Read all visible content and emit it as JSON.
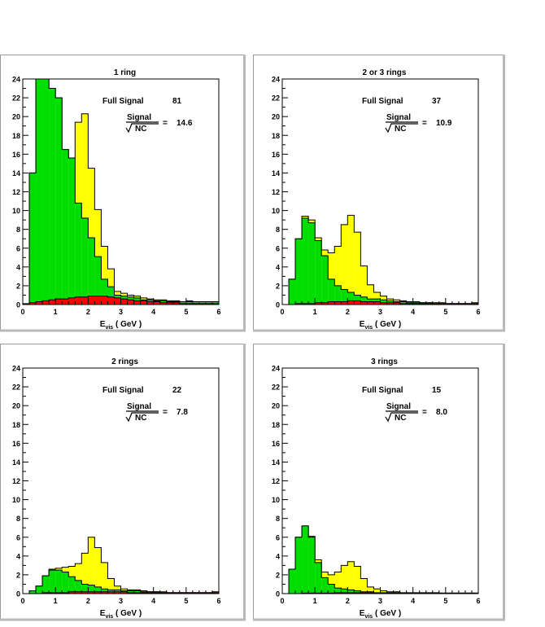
{
  "chart_data": [
    {
      "type": "area",
      "title": "1 ring",
      "xlabel": "E",
      "xlabel_sub": "vis",
      "xlabel_unit": "( GeV )",
      "ylabel": "",
      "xlim": [
        0,
        6
      ],
      "ylim": [
        0,
        24
      ],
      "x_ticks": [
        "0",
        "1",
        "2",
        "3",
        "4",
        "5",
        "6"
      ],
      "y_ticks": [
        "0",
        "2",
        "4",
        "6",
        "8",
        "10",
        "12",
        "14",
        "16",
        "18",
        "20",
        "22",
        "24"
      ],
      "annotations": {
        "full_signal_label": "Full Signal",
        "full_signal_value": "81",
        "signal_label": "Signal",
        "nc_label": "NC",
        "ratio_value": "14.6"
      },
      "bin_edges": [
        0,
        0.2,
        0.4,
        0.6,
        0.8,
        1.0,
        1.2,
        1.4,
        1.6,
        1.8,
        2.0,
        2.2,
        2.4,
        2.6,
        2.8,
        3.0,
        3.2,
        3.4,
        3.6,
        3.8,
        4.0,
        4.2,
        4.4,
        4.6,
        4.8,
        5.0,
        5.2,
        5.4,
        5.6,
        5.8,
        6.0
      ],
      "series": [
        {
          "name": "",
          "color": "#ffff00",
          "values": [
            0,
            14,
            30,
            24,
            23,
            22,
            16.5,
            15.6,
            19.4,
            20.3,
            14.5,
            10.1,
            6.2,
            3.8,
            1.4,
            1.2,
            1.0,
            0.9,
            0.7,
            0.6,
            0.5,
            0.5,
            0.4,
            0.4,
            0.3,
            0.4,
            0.3,
            0.3,
            0.3,
            0.3
          ]
        },
        {
          "name": "",
          "color": "#00dd00",
          "values": [
            0,
            14,
            30,
            24,
            23,
            22,
            16.5,
            15.6,
            10.8,
            9.2,
            7.1,
            5.1,
            2.7,
            1.9,
            1.0,
            0.9,
            0.8,
            0.7,
            0.5,
            0.5,
            0.4,
            0.4,
            0.3,
            0.3,
            0.3,
            0.3,
            0.3,
            0.3,
            0.3,
            0.3
          ]
        },
        {
          "name": "",
          "color": "#ff0000",
          "values": [
            0.1,
            0.2,
            0.3,
            0.4,
            0.5,
            0.6,
            0.6,
            0.7,
            0.8,
            0.8,
            0.9,
            0.9,
            0.9,
            0.8,
            0.7,
            0.6,
            0.5,
            0.4,
            0.4,
            0.3,
            0.3,
            0.2,
            0.2,
            0.2,
            0.1,
            0.1,
            0.1,
            0.1,
            0.1,
            0.1
          ]
        }
      ]
    },
    {
      "type": "area",
      "title": "2 or 3 rings",
      "xlabel": "E",
      "xlabel_sub": "vis",
      "xlabel_unit": "( GeV )",
      "ylabel": "",
      "xlim": [
        0,
        6
      ],
      "ylim": [
        0,
        24
      ],
      "x_ticks": [
        "0",
        "1",
        "2",
        "3",
        "4",
        "5",
        "6"
      ],
      "y_ticks": [
        "0",
        "2",
        "4",
        "6",
        "8",
        "10",
        "12",
        "14",
        "16",
        "18",
        "20",
        "22",
        "24"
      ],
      "annotations": {
        "full_signal_label": "Full Signal",
        "full_signal_value": "37",
        "signal_label": "Signal",
        "nc_label": "NC",
        "ratio_value": "10.9"
      },
      "bin_edges": [
        0,
        0.2,
        0.4,
        0.6,
        0.8,
        1.0,
        1.2,
        1.4,
        1.6,
        1.8,
        2.0,
        2.2,
        2.4,
        2.6,
        2.8,
        3.0,
        3.2,
        3.4,
        3.6,
        3.8,
        4.0,
        4.2,
        4.4,
        4.6,
        4.8,
        5.0,
        5.2,
        5.4,
        5.6,
        5.8,
        6.0
      ],
      "series": [
        {
          "name": "",
          "color": "#ffff00",
          "values": [
            0,
            2.7,
            7.0,
            9.4,
            9.0,
            7.1,
            5.8,
            5.5,
            6.2,
            8.5,
            9.5,
            7.7,
            4.1,
            2.1,
            1.3,
            0.9,
            0.6,
            0.5,
            0.4,
            0.3,
            0.3,
            0.2,
            0.2,
            0.2,
            0.2,
            0.1,
            0.1,
            0.1,
            0.1,
            0.2
          ]
        },
        {
          "name": "",
          "color": "#00dd00",
          "values": [
            0,
            2.7,
            7.0,
            9.2,
            8.7,
            6.8,
            5.2,
            2.7,
            2.0,
            1.6,
            1.3,
            1.0,
            0.8,
            0.6,
            0.6,
            0.5,
            0.4,
            0.3,
            0.3,
            0.2,
            0.2,
            0.2,
            0.2,
            0.1,
            0.1,
            0.1,
            0.1,
            0.1,
            0.1,
            0.1
          ]
        },
        {
          "name": "",
          "color": "#ff0000",
          "values": [
            0,
            0,
            0.1,
            0.1,
            0.1,
            0.2,
            0.2,
            0.3,
            0.3,
            0.3,
            0.4,
            0.4,
            0.3,
            0.3,
            0.3,
            0.2,
            0.2,
            0.2,
            0.1,
            0.1,
            0.1,
            0.1,
            0.1,
            0.1,
            0.1,
            0.1,
            0.1,
            0.1,
            0.1,
            0.1
          ]
        }
      ]
    },
    {
      "type": "area",
      "title": "2 rings",
      "xlabel": "E",
      "xlabel_sub": "vis",
      "xlabel_unit": "( GeV )",
      "ylabel": "",
      "xlim": [
        0,
        6
      ],
      "ylim": [
        0,
        24
      ],
      "x_ticks": [
        "0",
        "1",
        "2",
        "3",
        "4",
        "5",
        "6"
      ],
      "y_ticks": [
        "0",
        "2",
        "4",
        "6",
        "8",
        "10",
        "12",
        "14",
        "16",
        "18",
        "20",
        "22",
        "24"
      ],
      "annotations": {
        "full_signal_label": "Full Signal",
        "full_signal_value": "22",
        "signal_label": "Signal",
        "nc_label": "NC",
        "ratio_value": "7.8"
      },
      "bin_edges": [
        0,
        0.2,
        0.4,
        0.6,
        0.8,
        1.0,
        1.2,
        1.4,
        1.6,
        1.8,
        2.0,
        2.2,
        2.4,
        2.6,
        2.8,
        3.0,
        3.2,
        3.4,
        3.6,
        3.8,
        4.0,
        4.2,
        4.4,
        4.6,
        4.8,
        5.0,
        5.2,
        5.4,
        5.6,
        5.8,
        6.0
      ],
      "series": [
        {
          "name": "",
          "color": "#ffff00",
          "values": [
            0,
            0.3,
            0.8,
            1.9,
            2.6,
            2.7,
            2.8,
            2.9,
            3.2,
            4.3,
            6.0,
            4.9,
            3.3,
            1.6,
            0.8,
            0.5,
            0.4,
            0.4,
            0.3,
            0.2,
            0.2,
            0.2,
            0.1,
            0.1,
            0.1,
            0.1,
            0.1,
            0.1,
            0.1,
            0.2
          ]
        },
        {
          "name": "",
          "color": "#00dd00",
          "values": [
            0,
            0.3,
            0.8,
            1.9,
            2.5,
            2.5,
            2.3,
            1.8,
            1.4,
            1.0,
            0.9,
            0.7,
            0.5,
            0.4,
            0.4,
            0.3,
            0.3,
            0.3,
            0.2,
            0.2,
            0.2,
            0.1,
            0.1,
            0.1,
            0.1,
            0.1,
            0.1,
            0.1,
            0.1,
            0.1
          ]
        },
        {
          "name": "",
          "color": "#ff0000",
          "values": [
            0,
            0,
            0,
            0.1,
            0.1,
            0.1,
            0.1,
            0.2,
            0.2,
            0.2,
            0.2,
            0.2,
            0.2,
            0.2,
            0.2,
            0.2,
            0.1,
            0.1,
            0.1,
            0.1,
            0.1,
            0.1,
            0.1,
            0.1,
            0.1,
            0.1,
            0.1,
            0.1,
            0.1,
            0.1
          ]
        }
      ]
    },
    {
      "type": "area",
      "title": "3 rings",
      "xlabel": "E",
      "xlabel_sub": "vis",
      "xlabel_unit": "( GeV )",
      "ylabel": "",
      "xlim": [
        0,
        6
      ],
      "ylim": [
        0,
        24
      ],
      "x_ticks": [
        "0",
        "1",
        "2",
        "3",
        "4",
        "5",
        "6"
      ],
      "y_ticks": [
        "0",
        "2",
        "4",
        "6",
        "8",
        "10",
        "12",
        "14",
        "16",
        "18",
        "20",
        "22",
        "24"
      ],
      "annotations": {
        "full_signal_label": "Full Signal",
        "full_signal_value": "15",
        "signal_label": "Signal",
        "nc_label": "NC",
        "ratio_value": "8.0"
      },
      "bin_edges": [
        0,
        0.2,
        0.4,
        0.6,
        0.8,
        1.0,
        1.2,
        1.4,
        1.6,
        1.8,
        2.0,
        2.2,
        2.4,
        2.6,
        2.8,
        3.0,
        3.2,
        3.4,
        3.6,
        3.8,
        4.0,
        4.2,
        4.4,
        4.6,
        4.8,
        5.0,
        5.2,
        5.4,
        5.6,
        5.8,
        6.0
      ],
      "series": [
        {
          "name": "",
          "color": "#ffff00",
          "values": [
            0,
            2.6,
            6.0,
            7.2,
            6.1,
            3.6,
            2.3,
            2.0,
            2.3,
            3.0,
            3.4,
            2.9,
            1.6,
            0.7,
            0.5,
            0.3,
            0.2,
            0.2,
            0.1,
            0.1,
            0.1,
            0.1,
            0.1,
            0.1,
            0.05,
            0.05,
            0.05,
            0.05,
            0.05,
            0.05
          ]
        },
        {
          "name": "",
          "color": "#00dd00",
          "values": [
            0,
            2.6,
            6.0,
            7.2,
            6.0,
            3.3,
            1.7,
            1.0,
            0.6,
            0.5,
            0.4,
            0.3,
            0.2,
            0.2,
            0.1,
            0.1,
            0.1,
            0.1,
            0.05,
            0.05,
            0.05,
            0.05,
            0.05,
            0.05,
            0.05,
            0.05,
            0.05,
            0.05,
            0.05,
            0.05
          ]
        },
        {
          "name": "",
          "color": "#ff0000",
          "values": [
            0,
            0,
            0,
            0.05,
            0.05,
            0.05,
            0.05,
            0.05,
            0.1,
            0.1,
            0.1,
            0.1,
            0.1,
            0.1,
            0.05,
            0.05,
            0.05,
            0.05,
            0.05,
            0.05,
            0.05,
            0.05,
            0.05,
            0.05,
            0.05,
            0.05,
            0.05,
            0.05,
            0.05,
            0.05
          ]
        }
      ]
    }
  ]
}
